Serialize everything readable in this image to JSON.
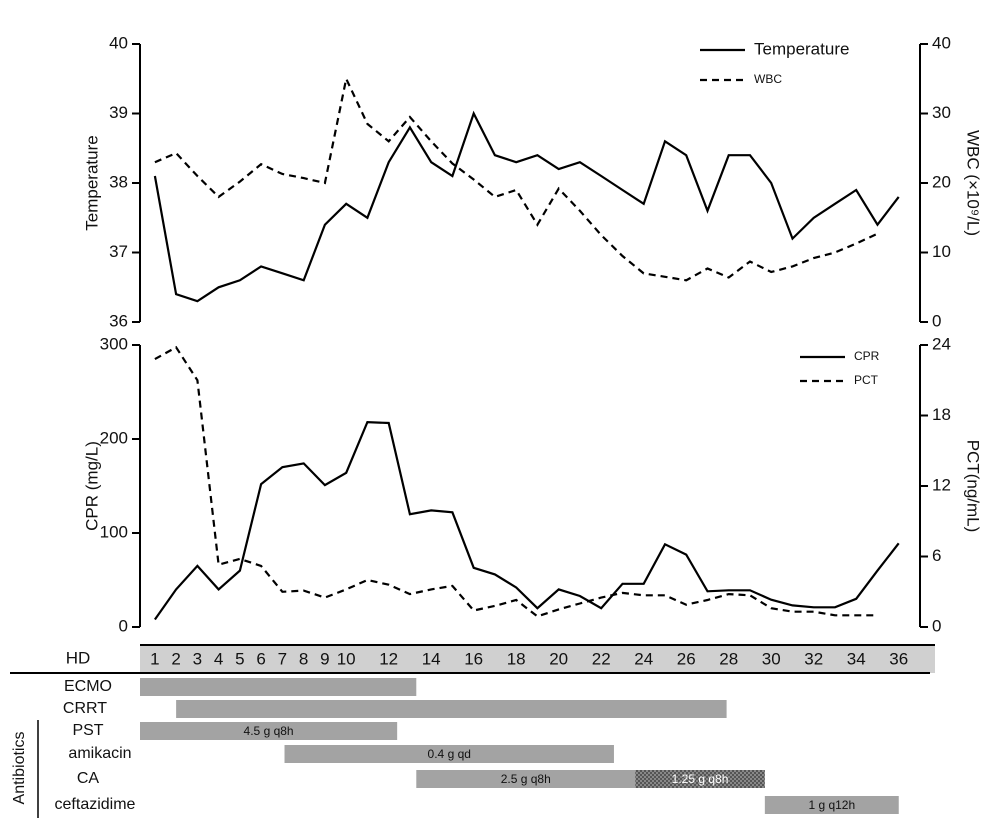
{
  "chart_data": [
    {
      "type": "line",
      "y_label": "Temperature",
      "y2_label": "WBC (×10⁹/L)",
      "x": [
        1,
        2,
        3,
        4,
        5,
        6,
        7,
        8,
        9,
        10,
        11,
        12,
        13,
        14,
        15,
        16,
        17,
        18,
        19,
        20,
        21,
        22,
        23,
        24,
        25,
        26,
        27,
        28,
        29,
        30,
        31,
        32,
        33,
        34,
        35,
        36
      ],
      "xlim": [
        0.3,
        37
      ],
      "ylim": [
        36,
        40
      ],
      "yticks": [
        36,
        37,
        38,
        39,
        40
      ],
      "y2lim": [
        0,
        40
      ],
      "y2ticks": [
        0,
        10,
        20,
        30,
        40
      ],
      "legend": "upper right",
      "series": [
        {
          "name": "Temperature",
          "color": "#000000",
          "dash": false,
          "values": [
            38.1,
            36.4,
            36.3,
            36.5,
            36.6,
            36.8,
            36.7,
            36.6,
            37.4,
            37.7,
            37.5,
            38.3,
            38.8,
            38.3,
            38.1,
            39.0,
            38.4,
            38.3,
            38.4,
            38.2,
            38.3,
            38.1,
            37.9,
            37.7,
            38.6,
            38.4,
            37.6,
            38.4,
            38.4,
            38.0,
            37.2,
            37.5,
            37.7,
            37.9,
            37.4,
            37.8
          ]
        },
        {
          "name": "WBC",
          "color": "#000000",
          "dash": true,
          "axis": "y2",
          "values": [
            23,
            24.3,
            21,
            18,
            20.2,
            22.7,
            21.3,
            20.7,
            20,
            35,
            28.5,
            26,
            29.5,
            26,
            22.8,
            20.5,
            18,
            19,
            14,
            19.2,
            16,
            12.5,
            9.5,
            7,
            6.5,
            6,
            7.7,
            6.4,
            8.7,
            7.2,
            8,
            9.2,
            10,
            11.3,
            12.7,
            null
          ]
        }
      ]
    },
    {
      "type": "line",
      "y_label": "CPR (mg/L)",
      "y2_label": "PCT(ng/mL)",
      "x": [
        1,
        2,
        3,
        4,
        5,
        6,
        7,
        8,
        9,
        10,
        11,
        12,
        13,
        14,
        15,
        16,
        17,
        18,
        19,
        20,
        21,
        22,
        23,
        24,
        25,
        26,
        27,
        28,
        29,
        30,
        31,
        32,
        33,
        34,
        35,
        36
      ],
      "xlim": [
        0.3,
        37
      ],
      "ylim": [
        0,
        300
      ],
      "yticks": [
        0,
        100,
        200,
        300
      ],
      "y2lim": [
        0,
        24
      ],
      "y2ticks": [
        0,
        6,
        12,
        18,
        24
      ],
      "legend": "upper right",
      "series": [
        {
          "name": "CPR",
          "color": "#000000",
          "dash": false,
          "values": [
            8,
            40,
            65,
            40,
            60,
            152,
            170,
            174,
            151,
            164,
            218,
            217,
            120,
            124,
            122,
            63,
            56,
            42,
            20,
            40,
            33,
            20,
            46,
            46,
            88,
            77,
            38,
            39,
            39,
            29,
            23,
            21,
            21,
            30,
            60,
            89
          ]
        },
        {
          "name": "PCT",
          "color": "#000000",
          "dash": true,
          "axis": "y2",
          "values": [
            22.8,
            23.8,
            21,
            5.3,
            5.8,
            5.2,
            3,
            3.1,
            2.5,
            3.2,
            4,
            3.6,
            2.8,
            3.2,
            3.5,
            1.4,
            1.8,
            2.3,
            0.9,
            1.5,
            2,
            2.5,
            2.9,
            2.7,
            2.7,
            1.9,
            2.3,
            2.8,
            2.7,
            1.6,
            1.3,
            1.3,
            1,
            1,
            1,
            null
          ]
        }
      ]
    }
  ],
  "timeline": {
    "label": "HD",
    "ticks": [
      1,
      2,
      3,
      4,
      5,
      6,
      7,
      8,
      9,
      10,
      12,
      14,
      16,
      18,
      20,
      22,
      24,
      26,
      28,
      30,
      32,
      34,
      36
    ],
    "group_label": "Antibiotics",
    "rows": [
      {
        "label": "ECMO",
        "bars": [
          {
            "start": 0.3,
            "end": 13.3
          }
        ]
      },
      {
        "label": "CRRT",
        "bars": [
          {
            "start": 2,
            "end": 27.9
          }
        ]
      },
      {
        "label": "PST",
        "bars": [
          {
            "start": 0.3,
            "end": 12.4,
            "label": "4.5 g q8h"
          }
        ]
      },
      {
        "label": "amikacin",
        "bars": [
          {
            "start": 7.1,
            "end": 22.6,
            "label": "0.4 g qd"
          }
        ]
      },
      {
        "label": "CA",
        "bars": [
          {
            "start": 13.3,
            "end": 23.6,
            "label": "2.5 g q8h"
          },
          {
            "start": 23.6,
            "end": 29.7,
            "label": "1.25 g q8h",
            "pattern": "hatched"
          }
        ]
      },
      {
        "label": "ceftazidime",
        "bars": [
          {
            "start": 29.7,
            "end": 36,
            "label": "1 g q12h"
          }
        ]
      }
    ]
  }
}
